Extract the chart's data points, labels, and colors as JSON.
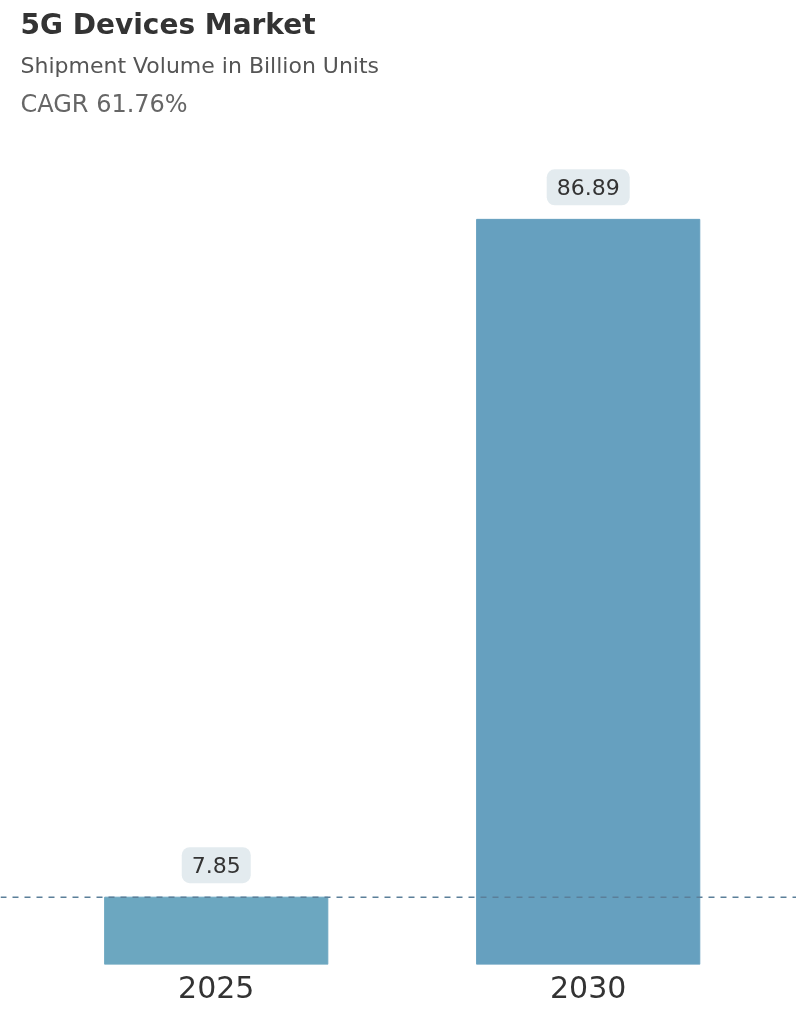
{
  "chart_data": {
    "type": "bar",
    "title": "5G Devices Market",
    "subtitle": "Shipment Volume in Billion Units",
    "annotations": [
      "CAGR 61.76%"
    ],
    "categories": [
      "2025",
      "2030"
    ],
    "values": [
      7.85,
      86.89
    ],
    "colors": [
      "#6ca7c0",
      "#66a0bf"
    ],
    "data_labels": true,
    "ref_lines": [
      {
        "axis": "y",
        "value": 7.85,
        "label": null,
        "color": "#5b7f99",
        "line_style": "dashed"
      }
    ],
    "grid": false,
    "tick_labels": "x"
  }
}
